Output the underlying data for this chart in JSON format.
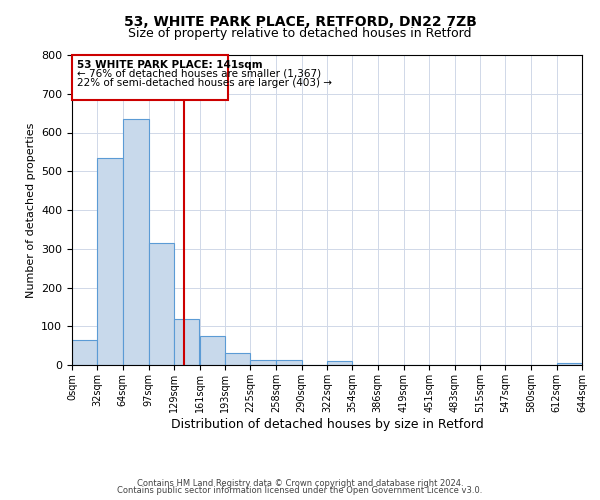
{
  "title1": "53, WHITE PARK PLACE, RETFORD, DN22 7ZB",
  "title2": "Size of property relative to detached houses in Retford",
  "xlabel": "Distribution of detached houses by size in Retford",
  "ylabel": "Number of detached properties",
  "bin_edges": [
    0,
    32,
    64,
    97,
    129,
    161,
    193,
    225,
    258,
    290,
    322,
    354,
    386,
    419,
    451,
    483,
    515,
    547,
    580,
    612,
    644
  ],
  "bin_counts": [
    65,
    535,
    635,
    315,
    120,
    75,
    30,
    12,
    12,
    0,
    10,
    0,
    0,
    0,
    0,
    0,
    0,
    0,
    0,
    5
  ],
  "tick_labels": [
    "0sqm",
    "32sqm",
    "64sqm",
    "97sqm",
    "129sqm",
    "161sqm",
    "193sqm",
    "225sqm",
    "258sqm",
    "290sqm",
    "322sqm",
    "354sqm",
    "386sqm",
    "419sqm",
    "451sqm",
    "483sqm",
    "515sqm",
    "547sqm",
    "580sqm",
    "612sqm",
    "644sqm"
  ],
  "bar_color": "#c8d9eb",
  "bar_edge_color": "#5b9bd5",
  "vline_x": 141,
  "vline_color": "#cc0000",
  "annotation_title": "53 WHITE PARK PLACE: 141sqm",
  "annotation_line1": "← 76% of detached houses are smaller (1,367)",
  "annotation_line2": "22% of semi-detached houses are larger (403) →",
  "annotation_box_color": "#cc0000",
  "ylim": [
    0,
    800
  ],
  "yticks": [
    0,
    100,
    200,
    300,
    400,
    500,
    600,
    700,
    800
  ],
  "footer1": "Contains HM Land Registry data © Crown copyright and database right 2024.",
  "footer2": "Contains public sector information licensed under the Open Government Licence v3.0.",
  "bg_color": "#ffffff",
  "grid_color": "#d0d8e8"
}
